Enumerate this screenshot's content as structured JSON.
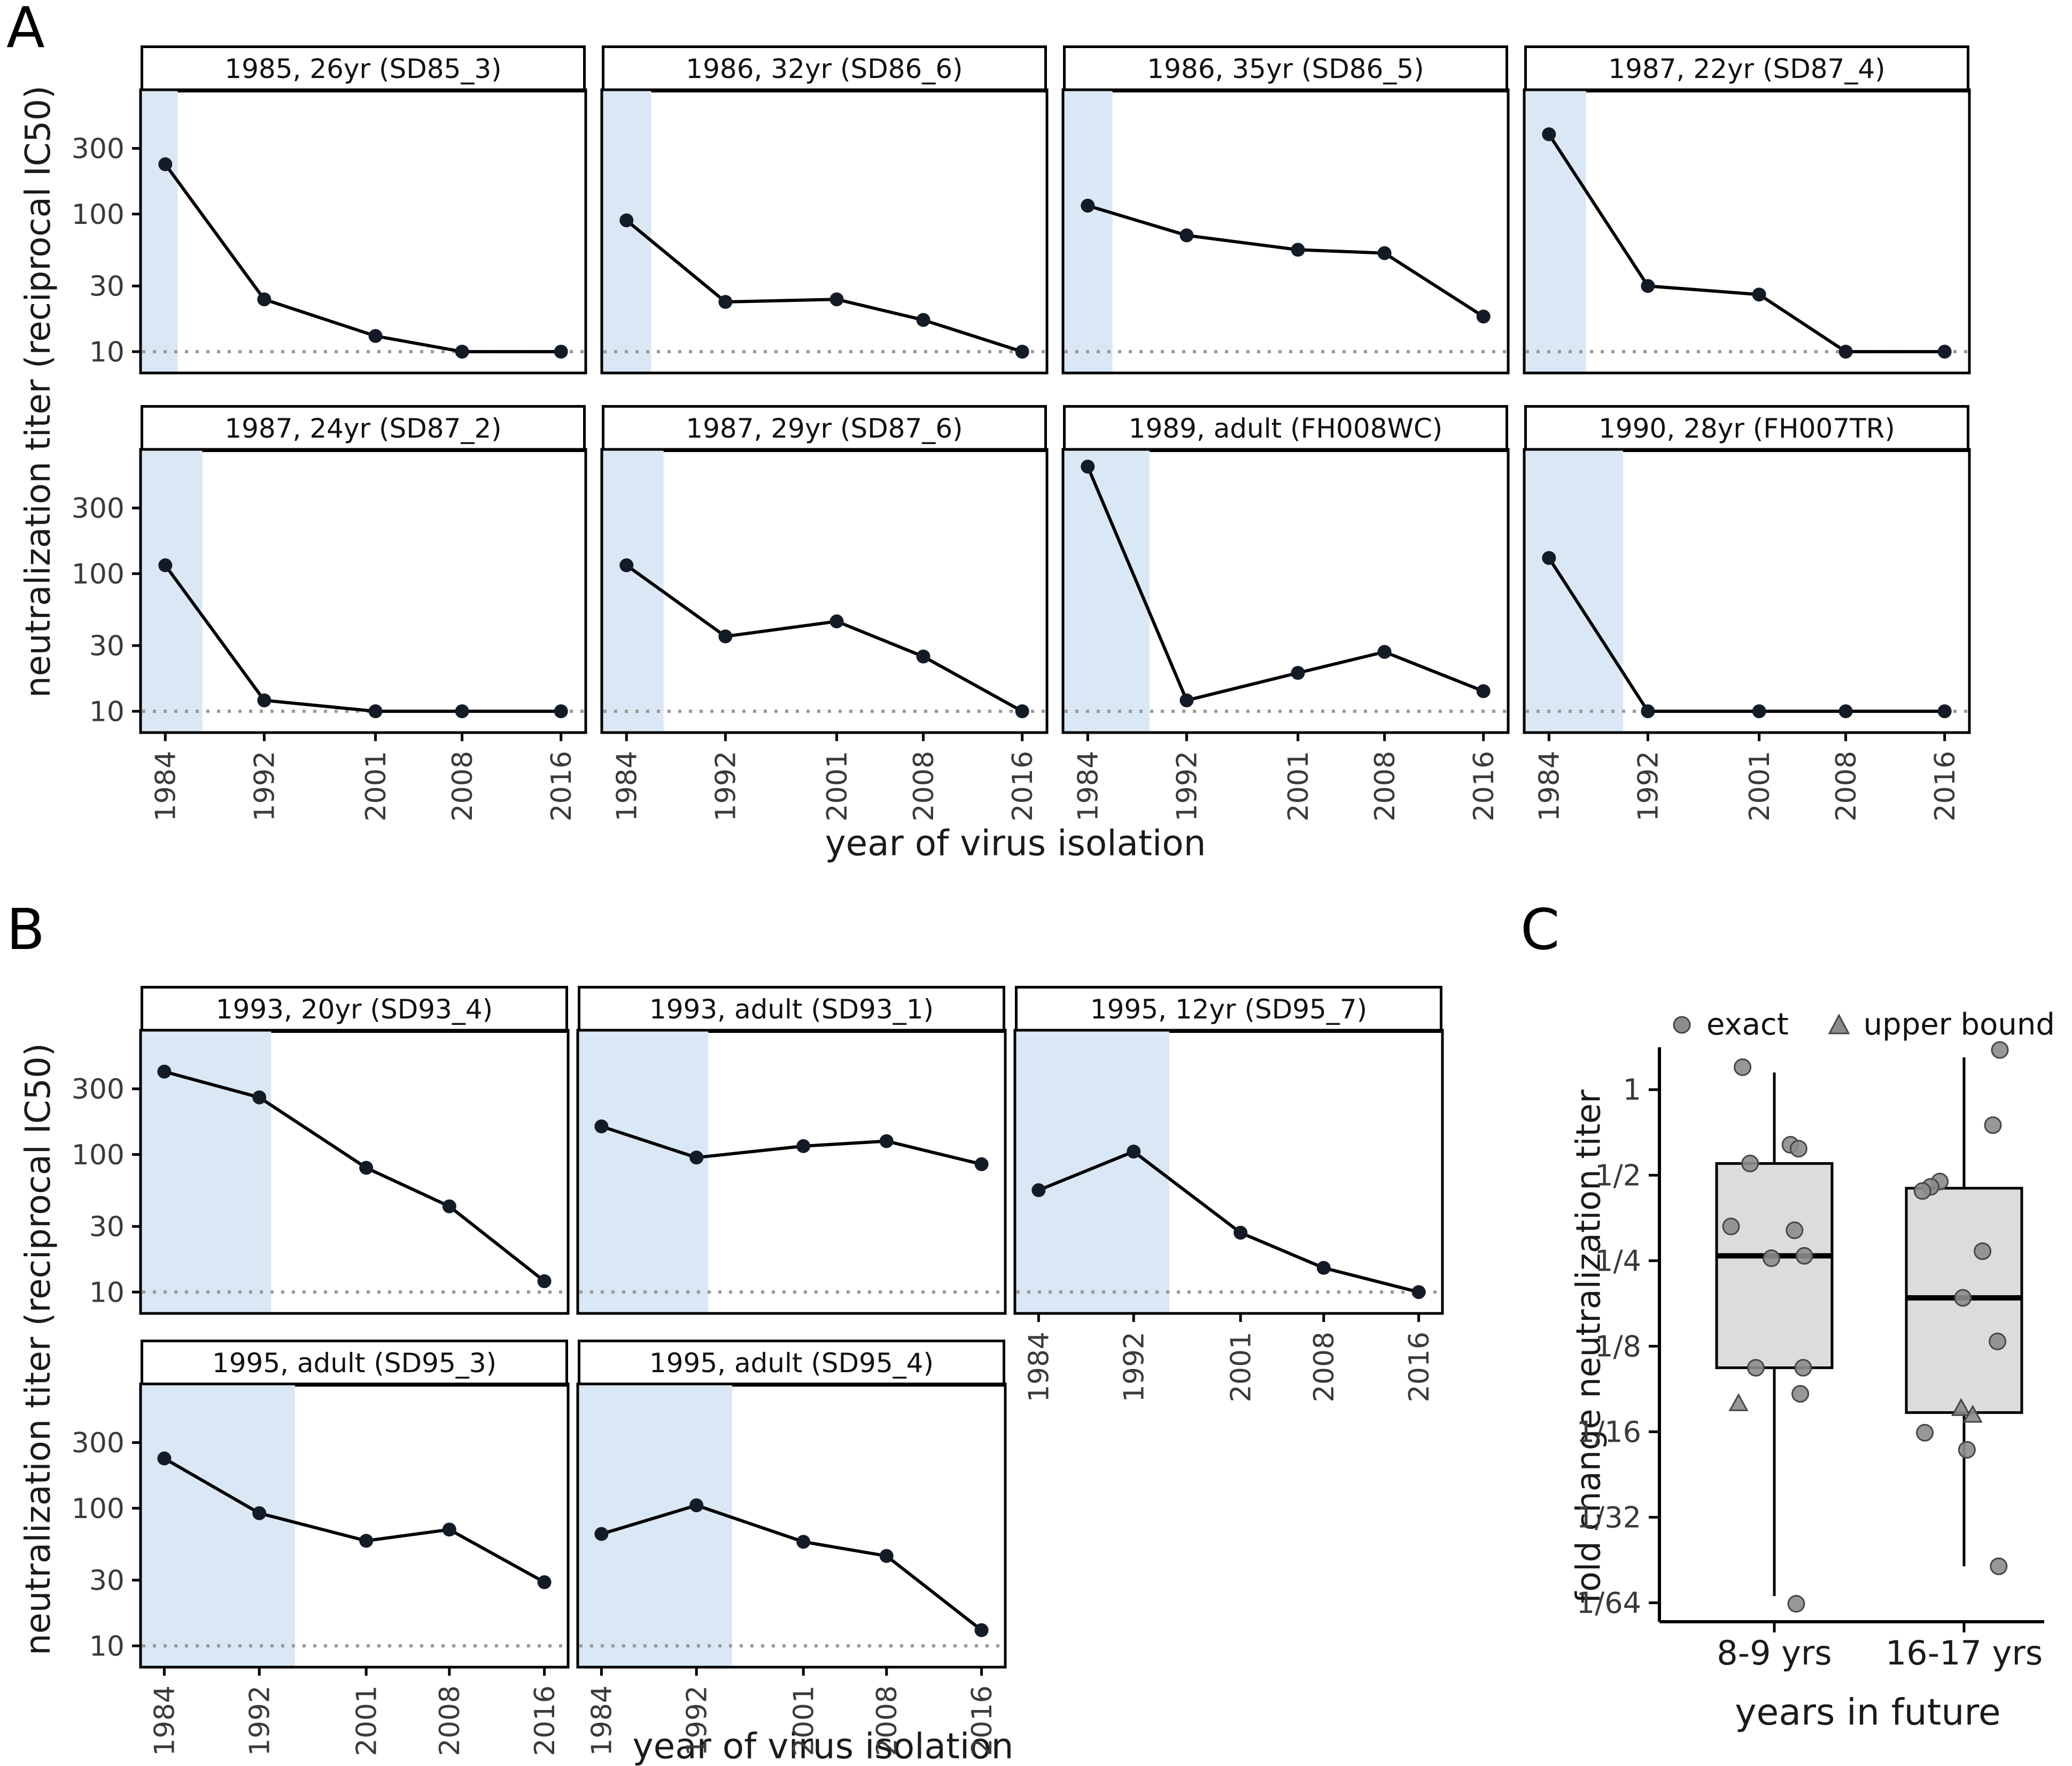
{
  "panels": {
    "A": {
      "label": "A"
    },
    "B": {
      "label": "B"
    },
    "C": {
      "label": "C"
    }
  },
  "colors": {
    "infection_shade": "#d9e8f4",
    "series_point": "#131c26",
    "series_line": "#000000",
    "threshold_line": "#999999",
    "box_fill": "#dcdcdc",
    "jitter_fill": "#8c8c8c",
    "jitter_stroke": "#474747"
  },
  "chart_data": [
    {
      "panel": "A",
      "type": "line",
      "ncols": 4,
      "x": [
        1984,
        1992,
        2001,
        2008,
        2016
      ],
      "x_tick_labels": [
        "1984",
        "1992",
        "2001",
        "2008",
        "2016"
      ],
      "xlabel": "year of virus isolation",
      "ylabel": "neutralization titer (reciprocal IC50)",
      "y_ticks": [
        300,
        100,
        30,
        10
      ],
      "ylim": [
        7,
        800
      ],
      "y_scale": "log10",
      "threshold": 10,
      "facets": [
        {
          "title": "1985, 26yr (SD85_3)",
          "infection_year": 1985,
          "values": [
            230,
            24,
            13,
            10,
            10
          ]
        },
        {
          "title": "1986, 32yr (SD86_6)",
          "infection_year": 1986,
          "values": [
            90,
            23,
            24,
            17,
            10
          ]
        },
        {
          "title": "1986, 35yr (SD86_5)",
          "infection_year": 1986,
          "values": [
            115,
            70,
            55,
            52,
            18
          ]
        },
        {
          "title": "1987, 22yr (SD87_4)",
          "infection_year": 1987,
          "values": [
            380,
            30,
            26,
            10,
            10
          ]
        },
        {
          "title": "1987, 24yr (SD87_2)",
          "infection_year": 1987,
          "values": [
            115,
            12,
            10,
            10,
            10
          ]
        },
        {
          "title": "1987, 29yr (SD87_6)",
          "infection_year": 1987,
          "values": [
            115,
            35,
            45,
            25,
            10
          ]
        },
        {
          "title": "1989, adult (FH008WC)",
          "infection_year": 1989,
          "values": [
            600,
            12,
            19,
            27,
            14
          ]
        },
        {
          "title": "1990, 28yr (FH007TR)",
          "infection_year": 1990,
          "values": [
            130,
            10,
            10,
            10,
            10
          ]
        }
      ]
    },
    {
      "panel": "B",
      "type": "line",
      "ncols": 3,
      "x": [
        1984,
        1992,
        2001,
        2008,
        2016
      ],
      "x_tick_labels": [
        "1984",
        "1992",
        "2001",
        "2008",
        "2016"
      ],
      "xlabel": "year of virus isolation",
      "ylabel": "neutralization titer (reciprocal IC50)",
      "y_ticks": [
        300,
        100,
        30,
        10
      ],
      "ylim": [
        7,
        800
      ],
      "y_scale": "log10",
      "threshold": 10,
      "facets": [
        {
          "title": "1993, 20yr (SD93_4)",
          "infection_year": 1993,
          "values": [
            400,
            260,
            80,
            42,
            12
          ]
        },
        {
          "title": "1993, adult (SD93_1)",
          "infection_year": 1993,
          "values": [
            160,
            95,
            115,
            125,
            85
          ]
        },
        {
          "title": "1995, 12yr (SD95_7)",
          "infection_year": 1995,
          "values": [
            55,
            105,
            27,
            15,
            10
          ]
        },
        {
          "title": "1995, adult (SD95_3)",
          "infection_year": 1995,
          "values": [
            230,
            92,
            58,
            70,
            29
          ]
        },
        {
          "title": "1995, adult (SD95_4)",
          "infection_year": 1995,
          "values": [
            65,
            105,
            57,
            45,
            13
          ]
        }
      ]
    },
    {
      "panel": "C",
      "type": "box",
      "ylabel": "fold change neutralization titer",
      "xlabel": "years in future",
      "y_tick_labels": [
        "1",
        "1/2",
        "1/4",
        "1/8",
        "1/16",
        "1/32",
        "1/64"
      ],
      "y_tick_values": [
        1,
        0.5,
        0.25,
        0.125,
        0.0625,
        0.03125,
        0.015625
      ],
      "y_scale": "log2",
      "ylim": [
        0.0134,
        1.41
      ],
      "legend": [
        {
          "marker": "circle",
          "label": "exact"
        },
        {
          "marker": "triangle",
          "label": "upper bound"
        }
      ],
      "groups": [
        {
          "label": "8-9 yrs",
          "box": {
            "q1": 0.105,
            "median": 0.26,
            "q3": 0.55,
            "whisker_low": 0.0165,
            "whisker_high": 1.15
          },
          "points": [
            {
              "dx": -0.55,
              "v": 1.2,
              "m": "circle"
            },
            {
              "dx": 0.28,
              "v": 0.64,
              "m": "circle"
            },
            {
              "dx": 0.42,
              "v": 0.62,
              "m": "circle"
            },
            {
              "dx": -0.42,
              "v": 0.55,
              "m": "circle"
            },
            {
              "dx": -0.75,
              "v": 0.33,
              "m": "circle"
            },
            {
              "dx": 0.35,
              "v": 0.32,
              "m": "circle"
            },
            {
              "dx": -0.05,
              "v": 0.255,
              "m": "circle"
            },
            {
              "dx": 0.52,
              "v": 0.26,
              "m": "circle"
            },
            {
              "dx": -0.32,
              "v": 0.105,
              "m": "circle"
            },
            {
              "dx": 0.5,
              "v": 0.105,
              "m": "circle"
            },
            {
              "dx": 0.45,
              "v": 0.085,
              "m": "circle"
            },
            {
              "dx": -0.62,
              "v": 0.078,
              "m": "triangle"
            },
            {
              "dx": 0.38,
              "v": 0.0155,
              "m": "circle"
            }
          ]
        },
        {
          "label": "16-17 yrs",
          "box": {
            "q1": 0.073,
            "median": 0.185,
            "q3": 0.45,
            "whisker_low": 0.021,
            "whisker_high": 1.3
          },
          "points": [
            {
              "dx": 0.62,
              "v": 1.38,
              "m": "circle"
            },
            {
              "dx": 0.5,
              "v": 0.75,
              "m": "circle"
            },
            {
              "dx": -0.42,
              "v": 0.475,
              "m": "circle"
            },
            {
              "dx": -0.58,
              "v": 0.455,
              "m": "circle"
            },
            {
              "dx": -0.72,
              "v": 0.44,
              "m": "circle"
            },
            {
              "dx": 0.32,
              "v": 0.27,
              "m": "circle"
            },
            {
              "dx": -0.02,
              "v": 0.185,
              "m": "circle"
            },
            {
              "dx": 0.58,
              "v": 0.13,
              "m": "circle"
            },
            {
              "dx": -0.05,
              "v": 0.075,
              "m": "triangle"
            },
            {
              "dx": 0.15,
              "v": 0.071,
              "m": "triangle"
            },
            {
              "dx": -0.68,
              "v": 0.062,
              "m": "circle"
            },
            {
              "dx": 0.05,
              "v": 0.054,
              "m": "circle"
            },
            {
              "dx": 0.6,
              "v": 0.021,
              "m": "circle"
            }
          ]
        }
      ]
    }
  ]
}
